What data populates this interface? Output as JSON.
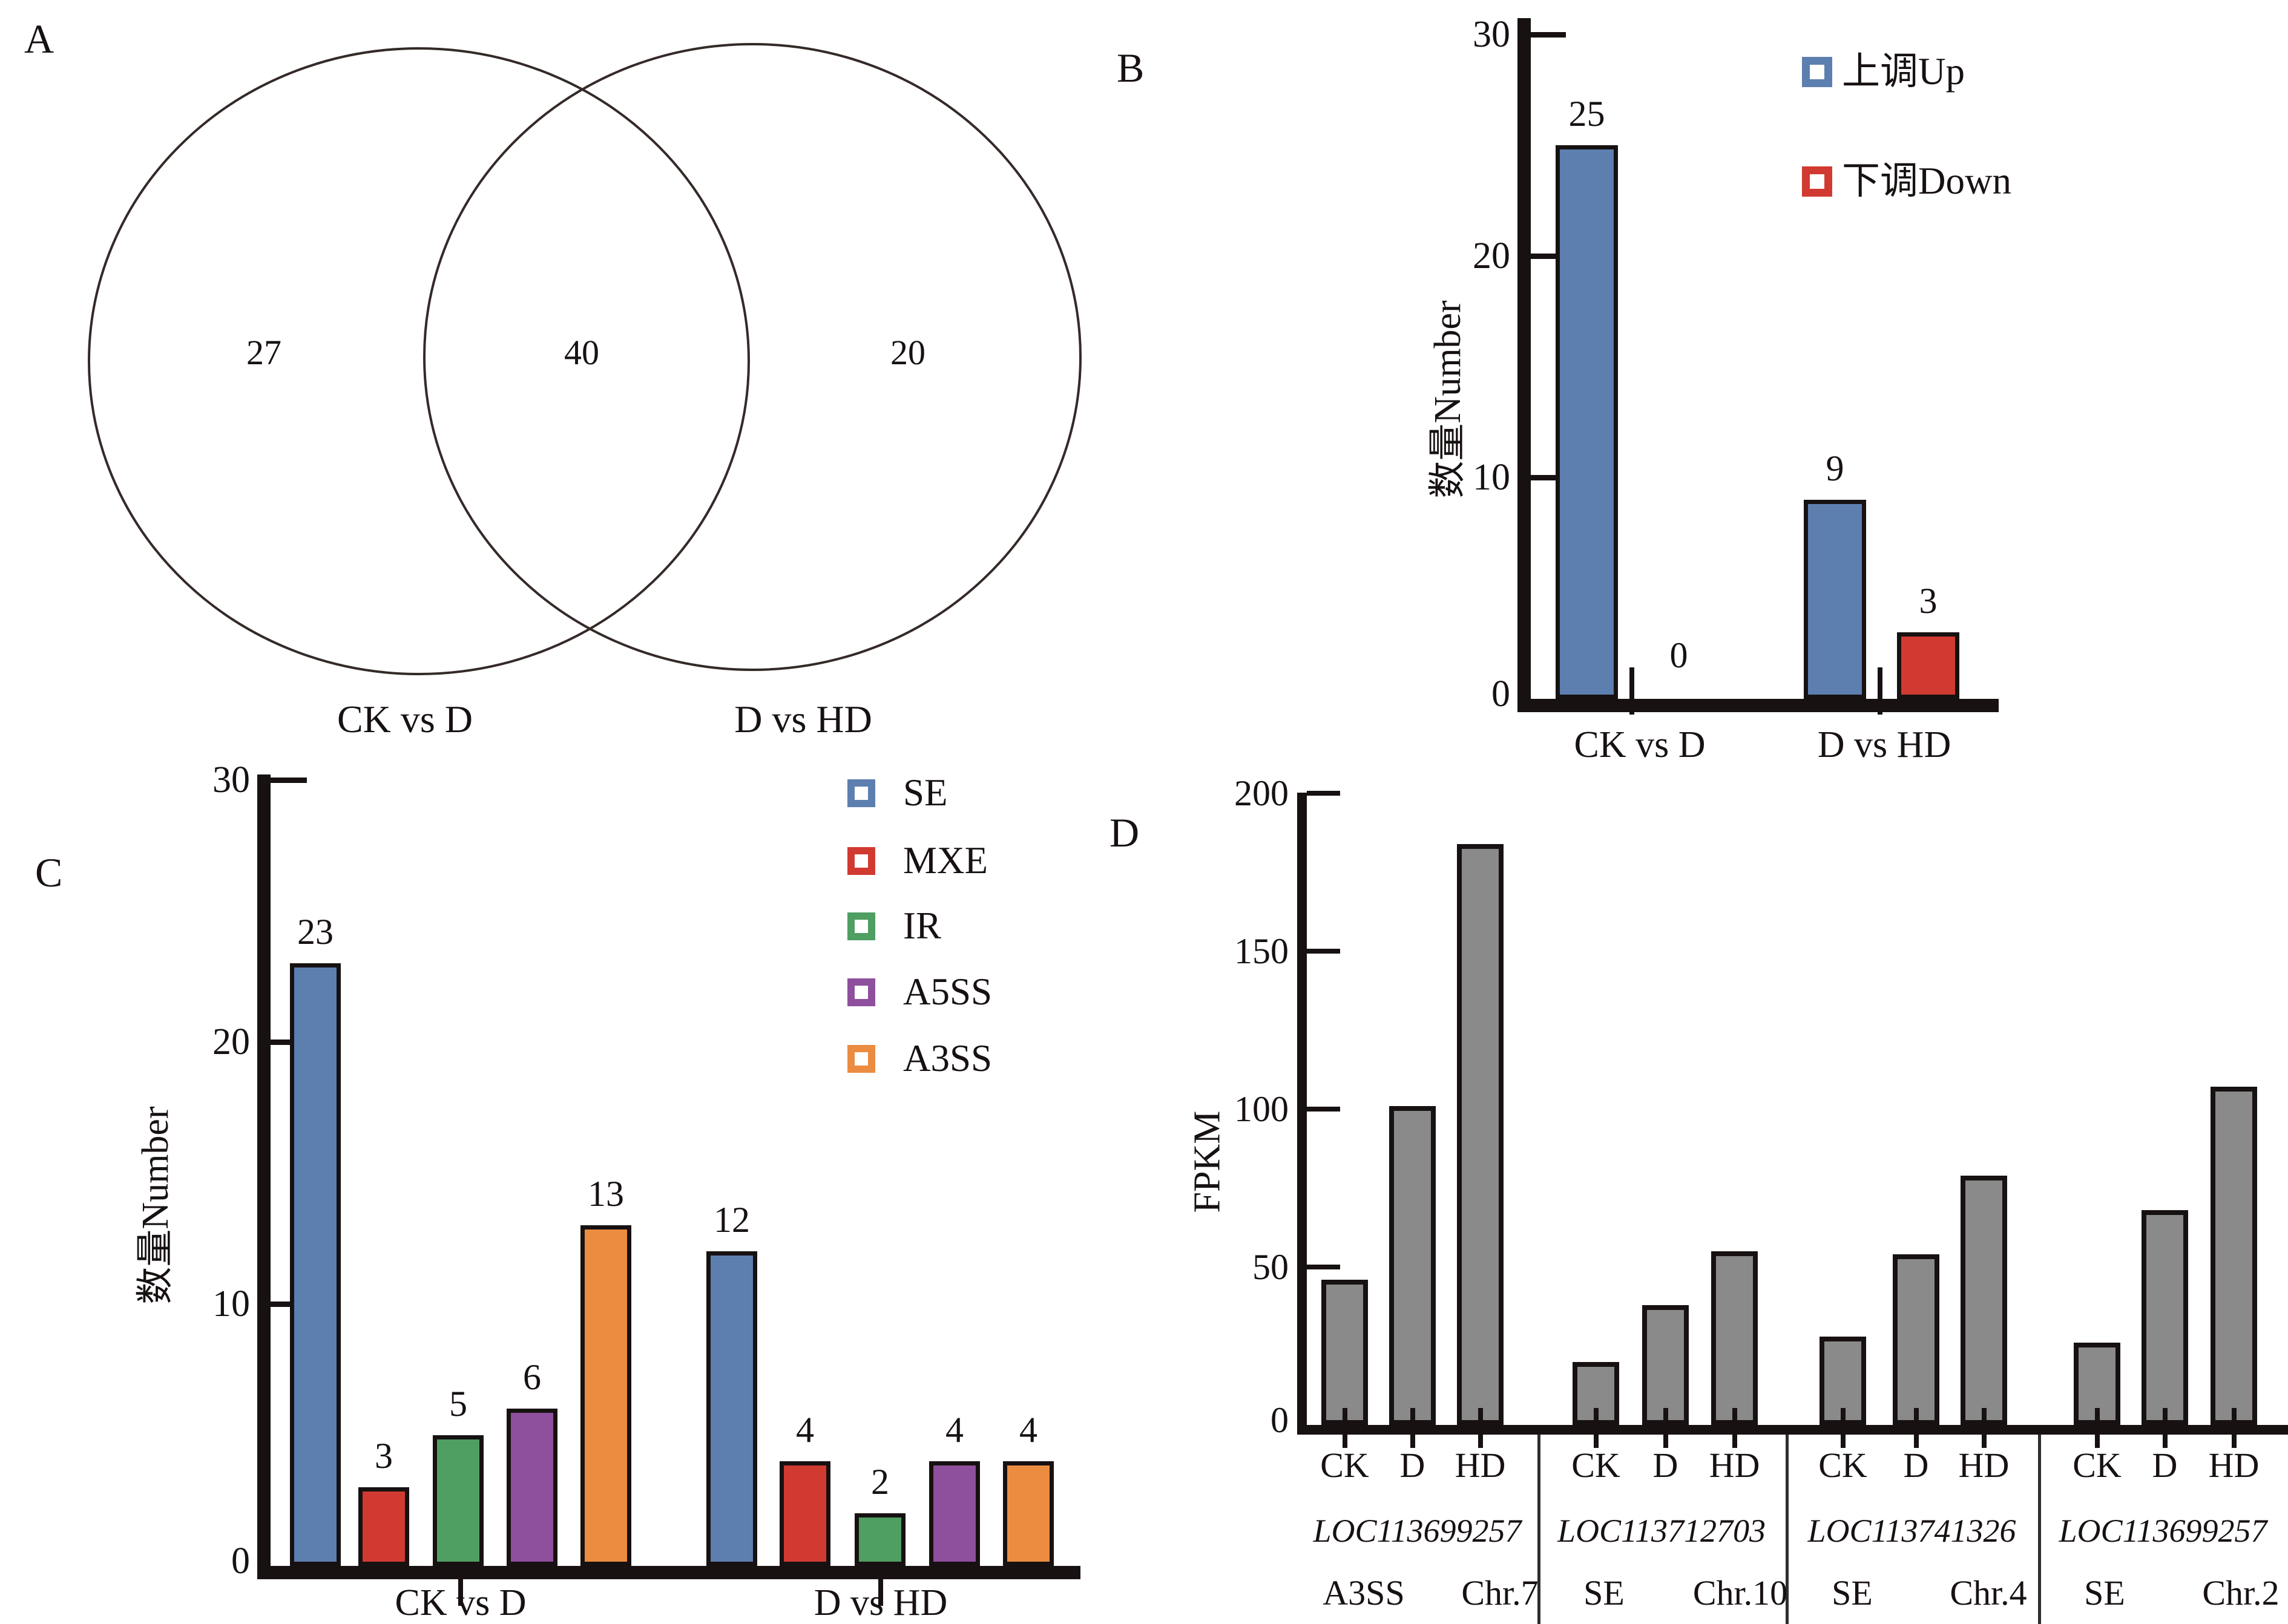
{
  "colors": {
    "ink": "#171111",
    "blue": "#5d7fb0",
    "red": "#d13a31",
    "green": "#4f9e62",
    "purple": "#8e4f9d",
    "orange": "#eb8c41",
    "gray": "#8a8a8a",
    "venn_stroke": "#342a28"
  },
  "chart_data": [
    {
      "panel_letter": "A",
      "type": "venn",
      "sets": [
        {
          "label": "CK vs D",
          "count": 27
        },
        {
          "label": "D vs HD",
          "count": 20
        }
      ],
      "overlap": 40
    },
    {
      "panel_letter": "B",
      "type": "bar",
      "ylabel": "数量Number",
      "ylim": [
        0,
        30
      ],
      "yticks": [
        0,
        10,
        20,
        30
      ],
      "categories": [
        "CK vs D",
        "D vs HD"
      ],
      "series": [
        {
          "name": "上调Up",
          "color": "#5d7fb0",
          "values": [
            25,
            9
          ]
        },
        {
          "name": "下调Down",
          "color": "#d13a31",
          "values": [
            0,
            3
          ]
        }
      ],
      "value_labels": true,
      "legend_position": "top-right",
      "grid": false
    },
    {
      "panel_letter": "C",
      "type": "bar",
      "ylabel": "数量Number",
      "ylim": [
        0,
        30
      ],
      "yticks": [
        0,
        10,
        20,
        30
      ],
      "categories": [
        "CK vs D",
        "D vs HD"
      ],
      "series": [
        {
          "name": "SE",
          "color": "#5d7fb0",
          "values": [
            23,
            12
          ]
        },
        {
          "name": "MXE",
          "color": "#d13a31",
          "values": [
            3,
            4
          ]
        },
        {
          "name": "IR",
          "color": "#4f9e62",
          "values": [
            5,
            2
          ]
        },
        {
          "name": "A5SS",
          "color": "#8e4f9d",
          "values": [
            6,
            4
          ]
        },
        {
          "name": "A3SS",
          "color": "#eb8c41",
          "values": [
            13,
            4
          ]
        }
      ],
      "value_labels": true,
      "legend_position": "top-right",
      "grid": false
    },
    {
      "panel_letter": "D",
      "type": "bar",
      "ylabel": "FPKM",
      "ylim": [
        0,
        200
      ],
      "yticks": [
        0,
        50,
        100,
        150,
        200
      ],
      "bar_color": "#8a8a8a",
      "categories": [
        "CK",
        "D",
        "HD"
      ],
      "groups": [
        {
          "gene": "LOC113699257",
          "event": "A3SS",
          "chromosome": "Chr.7",
          "values": [
            46,
            101,
            184
          ]
        },
        {
          "gene": "LOC113712703",
          "event": "SE",
          "chromosome": "Chr.10",
          "values": [
            20,
            38,
            55
          ]
        },
        {
          "gene": "LOC113741326",
          "event": "SE",
          "chromosome": "Chr.4",
          "values": [
            28,
            54,
            79
          ]
        },
        {
          "gene": "LOC113699257",
          "event": "SE",
          "chromosome": "Chr.2",
          "values": [
            26,
            68,
            107
          ]
        }
      ],
      "value_labels": false,
      "grid": false
    }
  ]
}
